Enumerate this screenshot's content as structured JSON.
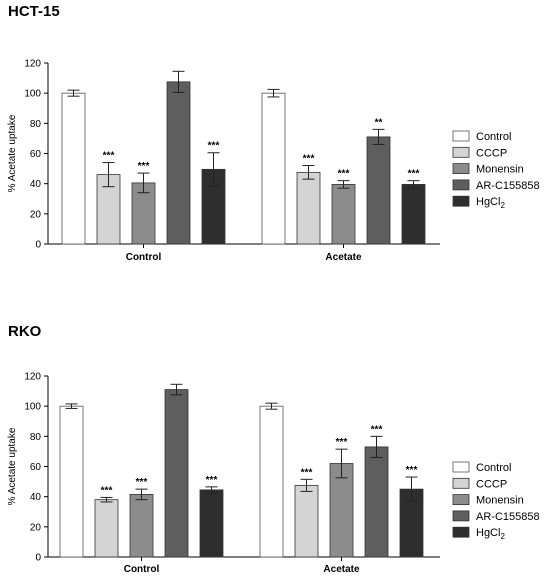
{
  "legend": {
    "entries": [
      {
        "label": "Control",
        "sub": "",
        "color": "#ffffff"
      },
      {
        "label": "CCCP",
        "sub": "",
        "color": "#d4d4d4"
      },
      {
        "label": "Monensin",
        "sub": "",
        "color": "#8c8c8c"
      },
      {
        "label": "AR-C155858",
        "sub": "",
        "color": "#5e5e5e"
      },
      {
        "label": "HgCl",
        "sub": "2",
        "color": "#2e2e2e"
      }
    ]
  },
  "chart_data": [
    {
      "type": "bar",
      "title": "HCT-15",
      "ylabel": "% Acetate uptake",
      "ylim": [
        0,
        120
      ],
      "yticks": [
        0,
        20,
        40,
        60,
        80,
        100,
        120
      ],
      "categories": [
        "Control",
        "Acetate"
      ],
      "series": [
        {
          "name": "Control",
          "values": [
            100,
            100
          ],
          "errors": [
            2,
            2.5
          ],
          "significance": [
            "",
            ""
          ]
        },
        {
          "name": "CCCP",
          "values": [
            46,
            47.5
          ],
          "errors": [
            8,
            4.5
          ],
          "significance": [
            "***",
            "***"
          ]
        },
        {
          "name": "Monensin",
          "values": [
            40.5,
            39.5
          ],
          "errors": [
            6.5,
            2.5
          ],
          "significance": [
            "***",
            "***"
          ]
        },
        {
          "name": "AR-C155858",
          "values": [
            107.5,
            71
          ],
          "errors": [
            7,
            5
          ],
          "significance": [
            "",
            "**"
          ]
        },
        {
          "name": "HgCl2",
          "values": [
            49.5,
            39.5
          ],
          "errors": [
            11,
            2.5
          ],
          "significance": [
            "***",
            "***"
          ]
        }
      ]
    },
    {
      "type": "bar",
      "title": "RKO",
      "ylabel": "% Acetate uptake",
      "ylim": [
        0,
        120
      ],
      "yticks": [
        0,
        20,
        40,
        60,
        80,
        100,
        120
      ],
      "categories": [
        "Control",
        "Acetate"
      ],
      "series": [
        {
          "name": "Control",
          "values": [
            100,
            100
          ],
          "errors": [
            1.5,
            2
          ],
          "significance": [
            "",
            ""
          ]
        },
        {
          "name": "CCCP",
          "values": [
            38,
            47.5
          ],
          "errors": [
            1.5,
            4
          ],
          "significance": [
            "***",
            "***"
          ]
        },
        {
          "name": "Monensin",
          "values": [
            41.5,
            62
          ],
          "errors": [
            3.5,
            9.5
          ],
          "significance": [
            "***",
            "***"
          ]
        },
        {
          "name": "AR-C155858",
          "values": [
            111,
            73
          ],
          "errors": [
            3.5,
            7
          ],
          "significance": [
            "",
            "***"
          ]
        },
        {
          "name": "HgCl2",
          "values": [
            44.5,
            45
          ],
          "errors": [
            2,
            8
          ],
          "significance": [
            "***",
            "***"
          ]
        }
      ]
    }
  ]
}
